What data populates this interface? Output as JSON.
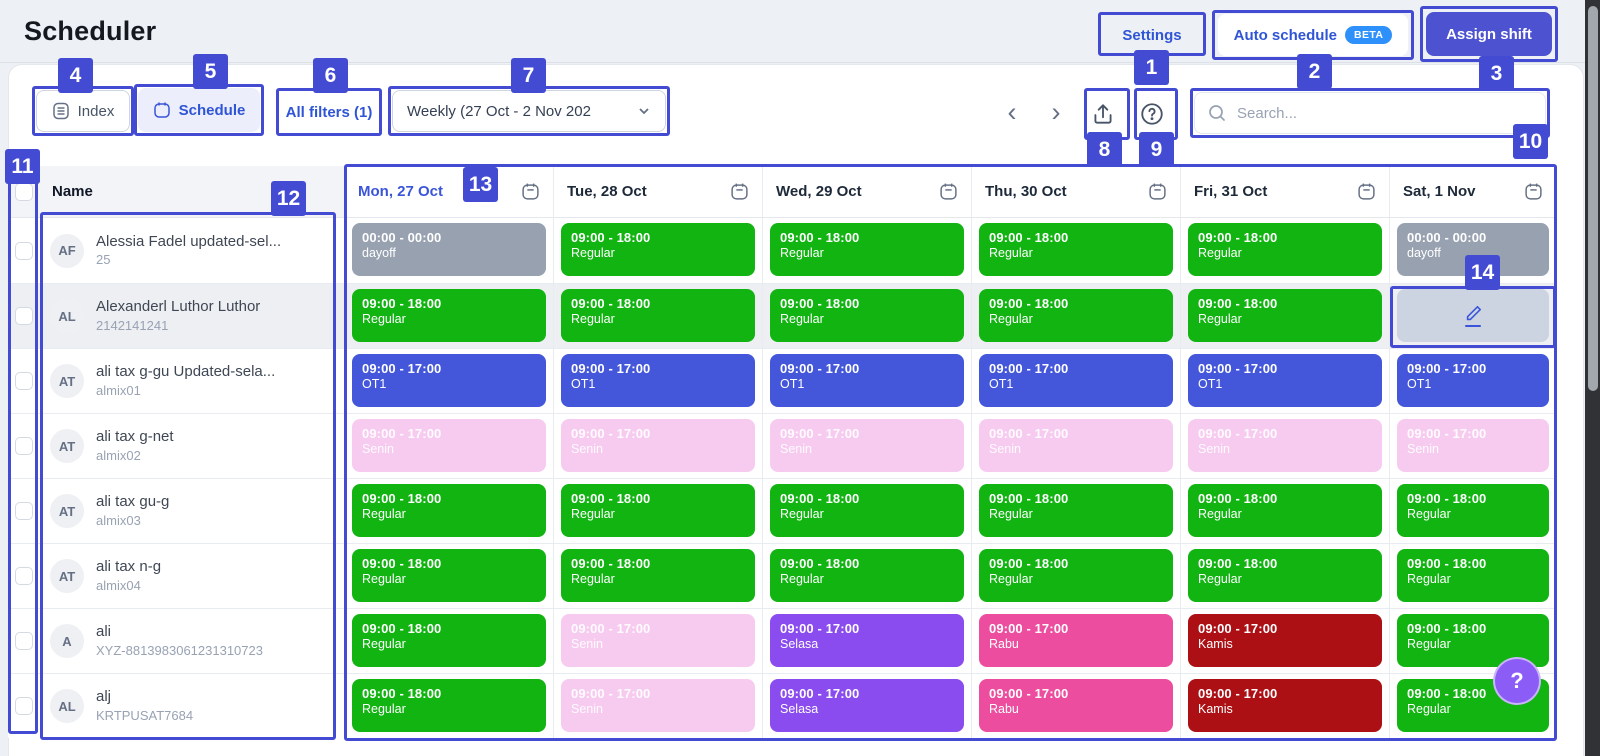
{
  "header": {
    "title": "Scheduler"
  },
  "topbar": {
    "settings_label": "Settings",
    "auto_schedule_label": "Auto schedule",
    "beta_label": "BETA",
    "assign_shift_label": "Assign shift"
  },
  "toolbar": {
    "index_label": "Index",
    "schedule_label": "Schedule",
    "filters_label": "All filters (1)",
    "period_label": "Weekly (27 Oct - 2 Nov 202",
    "search_placeholder": "Search..."
  },
  "table": {
    "name_header": "Name",
    "days": [
      {
        "label": "Mon, 27 Oct",
        "active": true
      },
      {
        "label": "Tue, 28 Oct",
        "active": false
      },
      {
        "label": "Wed, 29 Oct",
        "active": false
      },
      {
        "label": "Thu, 30 Oct",
        "active": false
      },
      {
        "label": "Fri, 31 Oct",
        "active": false
      },
      {
        "label": "Sat, 1 Nov",
        "active": false
      }
    ]
  },
  "employees": [
    {
      "initials": "AF",
      "name": "Alessia Fadel updated-sel...",
      "id": "25",
      "highlighted": false,
      "shifts": [
        {
          "time": "00:00 - 00:00",
          "label": "dayoff",
          "type": "dayoff"
        },
        {
          "time": "09:00 - 18:00",
          "label": "Regular",
          "type": "regular"
        },
        {
          "time": "09:00 - 18:00",
          "label": "Regular",
          "type": "regular"
        },
        {
          "time": "09:00 - 18:00",
          "label": "Regular",
          "type": "regular"
        },
        {
          "time": "09:00 - 18:00",
          "label": "Regular",
          "type": "regular"
        },
        {
          "time": "00:00 - 00:00",
          "label": "dayoff",
          "type": "dayoff"
        }
      ]
    },
    {
      "initials": "AL",
      "name": "Alexanderl Luthor Luthor",
      "id": "2142141241",
      "highlighted": true,
      "shifts": [
        {
          "time": "09:00 - 18:00",
          "label": "Regular",
          "type": "regular"
        },
        {
          "time": "09:00 - 18:00",
          "label": "Regular",
          "type": "regular"
        },
        {
          "time": "09:00 - 18:00",
          "label": "Regular",
          "type": "regular"
        },
        {
          "time": "09:00 - 18:00",
          "label": "Regular",
          "type": "regular"
        },
        {
          "time": "09:00 - 18:00",
          "label": "Regular",
          "type": "regular"
        },
        {
          "type": "edit"
        }
      ]
    },
    {
      "initials": "AT",
      "name": "ali tax g-gu Updated-sela...",
      "id": "almix01",
      "highlighted": false,
      "shifts": [
        {
          "time": "09:00 - 17:00",
          "label": "OT1",
          "type": "ot1"
        },
        {
          "time": "09:00 - 17:00",
          "label": "OT1",
          "type": "ot1"
        },
        {
          "time": "09:00 - 17:00",
          "label": "OT1",
          "type": "ot1"
        },
        {
          "time": "09:00 - 17:00",
          "label": "OT1",
          "type": "ot1"
        },
        {
          "time": "09:00 - 17:00",
          "label": "OT1",
          "type": "ot1"
        },
        {
          "time": "09:00 - 17:00",
          "label": "OT1",
          "type": "ot1"
        }
      ]
    },
    {
      "initials": "AT",
      "name": "ali tax g-net",
      "id": "almix02",
      "highlighted": false,
      "shifts": [
        {
          "time": "09:00 - 17:00",
          "label": "Senin",
          "type": "senin"
        },
        {
          "time": "09:00 - 17:00",
          "label": "Senin",
          "type": "senin"
        },
        {
          "time": "09:00 - 17:00",
          "label": "Senin",
          "type": "senin"
        },
        {
          "time": "09:00 - 17:00",
          "label": "Senin",
          "type": "senin"
        },
        {
          "time": "09:00 - 17:00",
          "label": "Senin",
          "type": "senin"
        },
        {
          "time": "09:00 - 17:00",
          "label": "Senin",
          "type": "senin"
        }
      ]
    },
    {
      "initials": "AT",
      "name": "ali tax gu-g",
      "id": "almix03",
      "highlighted": false,
      "shifts": [
        {
          "time": "09:00 - 18:00",
          "label": "Regular",
          "type": "regular"
        },
        {
          "time": "09:00 - 18:00",
          "label": "Regular",
          "type": "regular"
        },
        {
          "time": "09:00 - 18:00",
          "label": "Regular",
          "type": "regular"
        },
        {
          "time": "09:00 - 18:00",
          "label": "Regular",
          "type": "regular"
        },
        {
          "time": "09:00 - 18:00",
          "label": "Regular",
          "type": "regular"
        },
        {
          "time": "09:00 - 18:00",
          "label": "Regular",
          "type": "regular"
        }
      ]
    },
    {
      "initials": "AT",
      "name": "ali tax n-g",
      "id": "almix04",
      "highlighted": false,
      "shifts": [
        {
          "time": "09:00 - 18:00",
          "label": "Regular",
          "type": "regular"
        },
        {
          "time": "09:00 - 18:00",
          "label": "Regular",
          "type": "regular"
        },
        {
          "time": "09:00 - 18:00",
          "label": "Regular",
          "type": "regular"
        },
        {
          "time": "09:00 - 18:00",
          "label": "Regular",
          "type": "regular"
        },
        {
          "time": "09:00 - 18:00",
          "label": "Regular",
          "type": "regular"
        },
        {
          "time": "09:00 - 18:00",
          "label": "Regular",
          "type": "regular"
        }
      ]
    },
    {
      "initials": "A",
      "name": "ali",
      "id": "XYZ-8813983061231310723",
      "highlighted": false,
      "shifts": [
        {
          "time": "09:00 - 18:00",
          "label": "Regular",
          "type": "regular"
        },
        {
          "time": "09:00 - 17:00",
          "label": "Senin",
          "type": "senin"
        },
        {
          "time": "09:00 - 17:00",
          "label": "Selasa",
          "type": "selasa"
        },
        {
          "time": "09:00 - 17:00",
          "label": "Rabu",
          "type": "rabu"
        },
        {
          "time": "09:00 - 17:00",
          "label": "Kamis",
          "type": "kamis"
        },
        {
          "time": "09:00 - 18:00",
          "label": "Regular",
          "type": "regular"
        }
      ]
    },
    {
      "initials": "AL",
      "name": "alj",
      "id": "KRTPUSAT7684",
      "highlighted": false,
      "shifts": [
        {
          "time": "09:00 - 18:00",
          "label": "Regular",
          "type": "regular"
        },
        {
          "time": "09:00 - 17:00",
          "label": "Senin",
          "type": "senin"
        },
        {
          "time": "09:00 - 17:00",
          "label": "Selasa",
          "type": "selasa"
        },
        {
          "time": "09:00 - 17:00",
          "label": "Rabu",
          "type": "rabu"
        },
        {
          "time": "09:00 - 17:00",
          "label": "Kamis",
          "type": "kamis"
        },
        {
          "time": "09:00 - 18:00",
          "label": "Regular",
          "type": "regular"
        }
      ]
    }
  ],
  "shift_colors": {
    "regular": "#12b412",
    "dayoff": "#97a1b0",
    "ot1": "#4457db",
    "senin": "#f7cbf0",
    "selasa": "#8a4bef",
    "rabu": "#ed4d9e",
    "kamis": "#ac1015",
    "edit": "#ccd4e2"
  },
  "colors": {
    "annotation": "#444bd3",
    "brand_blue": "#2f55d6",
    "assign_bg": "#4d53d0",
    "beta_bg": "#2e90fa",
    "help_fab": "#8b5cf6"
  },
  "annotations": {
    "numbers": [
      "1",
      "2",
      "3",
      "4",
      "5",
      "6",
      "7",
      "8",
      "9",
      "10",
      "11",
      "12",
      "13",
      "14"
    ]
  },
  "floating_help": {
    "icon": "?"
  }
}
